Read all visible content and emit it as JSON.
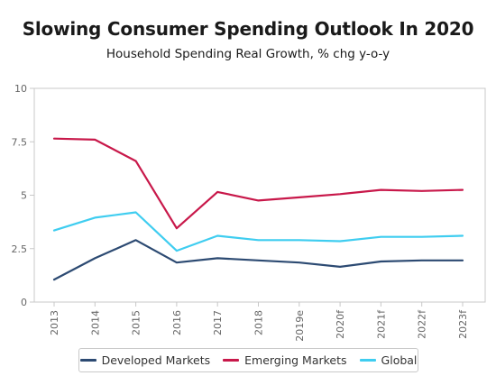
{
  "chart_data": {
    "type": "line",
    "title": "Slowing Consumer Spending Outlook In 2020",
    "subtitle": "Household Spending Real Growth, % chg y-o-y",
    "xlabel": "",
    "ylabel": "",
    "categories": [
      "2013",
      "2014",
      "2015",
      "2016",
      "2017",
      "2018",
      "2019e",
      "2020f",
      "2021f",
      "2022f",
      "2023f"
    ],
    "ylim": [
      0,
      10
    ],
    "yticks": [
      {
        "value": 0,
        "label": "0"
      },
      {
        "value": 2.5,
        "label": "2.5"
      },
      {
        "value": 5,
        "label": "5"
      },
      {
        "value": 7.5,
        "label": "7.5"
      },
      {
        "value": 10,
        "label": "10"
      }
    ],
    "grid": false,
    "legend_position": "bottom",
    "series": [
      {
        "name": "Developed Markets",
        "color": "#2c4a72",
        "values": [
          1.05,
          2.05,
          2.9,
          1.85,
          2.05,
          1.95,
          1.85,
          1.65,
          1.9,
          1.95,
          1.95
        ]
      },
      {
        "name": "Emerging Markets",
        "color": "#c8184a",
        "values": [
          7.65,
          7.6,
          6.6,
          3.45,
          5.15,
          4.75,
          4.9,
          5.05,
          5.25,
          5.2,
          5.25
        ]
      },
      {
        "name": "Global",
        "color": "#3fcdf0",
        "values": [
          3.35,
          3.95,
          4.2,
          2.4,
          3.1,
          2.9,
          2.9,
          2.85,
          3.05,
          3.05,
          3.1
        ]
      }
    ]
  }
}
